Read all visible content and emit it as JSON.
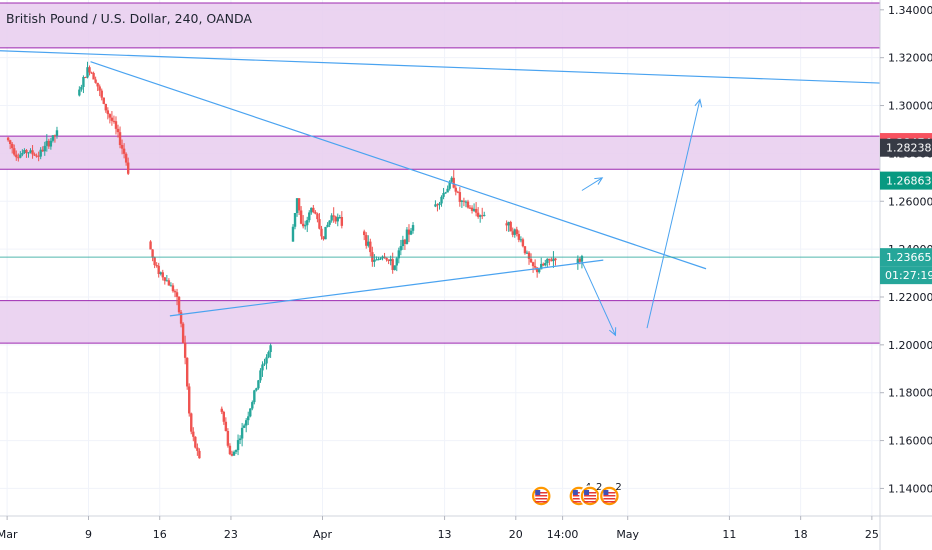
{
  "chart_data": {
    "type": "candlestick",
    "title": "British Pound / U.S. Dollar, 240, OANDA",
    "x_ticks": [
      {
        "label": "Mar",
        "day": 1
      },
      {
        "label": "9",
        "day": 9
      },
      {
        "label": "16",
        "day": 16
      },
      {
        "label": "23",
        "day": 23
      },
      {
        "label": "Apr",
        "day": 32
      },
      {
        "label": "13",
        "day": 44
      },
      {
        "label": "20",
        "day": 51
      },
      {
        "label": "14:00",
        "day": 55.6
      },
      {
        "label": "May",
        "day": 62
      },
      {
        "label": "11",
        "day": 72
      },
      {
        "label": "18",
        "day": 79
      },
      {
        "label": "25",
        "day": 86
      }
    ],
    "x_range_days": [
      0.3,
      86.8
    ],
    "y_ticks": [
      "1.14000",
      "1.16000",
      "1.18000",
      "1.20000",
      "1.22000",
      "1.24000",
      "1.26000",
      "1.28000",
      "1.30000",
      "1.32000",
      "1.34000"
    ],
    "ylim": [
      1.12848,
      1.3441
    ],
    "price_path": [
      [
        0.3,
        1.29
      ],
      [
        1.0,
        1.286
      ],
      [
        2.0,
        1.279
      ],
      [
        3.0,
        1.281
      ],
      [
        4.0,
        1.279
      ],
      [
        5.0,
        1.284
      ],
      [
        6.0,
        1.289
      ],
      [
        7.0,
        1.297
      ],
      [
        8.0,
        1.305
      ],
      [
        9.0,
        1.316
      ],
      [
        9.7,
        1.311
      ],
      [
        10.5,
        1.3
      ],
      [
        11.5,
        1.292
      ],
      [
        12.5,
        1.28
      ],
      [
        13.5,
        1.262
      ],
      [
        14.5,
        1.25
      ],
      [
        15.5,
        1.233
      ],
      [
        16.5,
        1.228
      ],
      [
        17.5,
        1.222
      ],
      [
        18.0,
        1.212
      ],
      [
        18.5,
        1.194
      ],
      [
        19.0,
        1.165
      ],
      [
        20.0,
        1.15
      ],
      [
        21.0,
        1.158
      ],
      [
        22.0,
        1.175
      ],
      [
        23.0,
        1.152
      ],
      [
        24.0,
        1.163
      ],
      [
        25.0,
        1.175
      ],
      [
        26.0,
        1.19
      ],
      [
        27.0,
        1.2
      ],
      [
        28.0,
        1.215
      ],
      [
        28.8,
        1.24
      ],
      [
        29.5,
        1.262
      ],
      [
        30.0,
        1.247
      ],
      [
        31.0,
        1.258
      ],
      [
        32.0,
        1.245
      ],
      [
        33.0,
        1.255
      ],
      [
        34.0,
        1.25
      ],
      [
        35.0,
        1.242
      ],
      [
        36.0,
        1.248
      ],
      [
        37.0,
        1.234
      ],
      [
        38.0,
        1.238
      ],
      [
        39.0,
        1.232
      ],
      [
        40.0,
        1.244
      ],
      [
        41.0,
        1.25
      ],
      [
        42.0,
        1.256
      ],
      [
        43.0,
        1.258
      ],
      [
        44.0,
        1.264
      ],
      [
        44.8,
        1.269
      ],
      [
        45.5,
        1.26
      ],
      [
        46.5,
        1.257
      ],
      [
        47.5,
        1.254
      ],
      [
        48.5,
        1.257
      ],
      [
        49.5,
        1.252
      ],
      [
        50.5,
        1.249
      ],
      [
        51.5,
        1.244
      ],
      [
        52.5,
        1.233
      ],
      [
        53.0,
        1.231
      ],
      [
        54.0,
        1.234
      ],
      [
        55.0,
        1.237
      ],
      [
        56.0,
        1.236
      ],
      [
        57.0,
        1.234
      ],
      [
        57.5,
        1.2366
      ]
    ],
    "zones": [
      {
        "from": 1.3241,
        "to": 1.34285,
        "color": "#e7cdee"
      },
      {
        "from": 1.2734,
        "to": 1.2872,
        "color": "#e7cdee"
      },
      {
        "from": 1.2007,
        "to": 1.2185,
        "color": "#e7cdee"
      }
    ],
    "trend_lines": [
      {
        "from": [
          0.3,
          1.3229
        ],
        "to": [
          86.8,
          1.3094
        ]
      },
      {
        "from": [
          9.2,
          1.3183
        ],
        "to": [
          69.7,
          1.2318
        ]
      },
      {
        "from": [
          17.0,
          1.2121
        ],
        "to": [
          59.6,
          1.2354
        ]
      }
    ],
    "arrows": [
      {
        "path": [
          [
            57.5,
            1.2645
          ],
          [
            59.5,
            1.2698
          ]
        ]
      },
      {
        "path": [
          [
            57.5,
            1.2348
          ],
          [
            60.8,
            1.204
          ]
        ]
      },
      {
        "path": [
          [
            63.9,
            1.207
          ],
          [
            69.1,
            1.3025
          ]
        ]
      }
    ],
    "price_labels": [
      {
        "text": "1.28474",
        "value": 1.28474,
        "color": "#f7525f"
      },
      {
        "text": "1.28238",
        "value": 1.28238,
        "color": "#363a45"
      },
      {
        "text": "1.26863",
        "value": 1.26863,
        "color": "#089981"
      },
      {
        "text": "1.23665",
        "value": 1.23665,
        "color": "#26a69a"
      }
    ],
    "countdown": "01:27:19",
    "event_markers": [
      {
        "day": 53.5,
        "kind": "flag",
        "label": ""
      },
      {
        "day": 57.2,
        "kind": "flag",
        "label": "4"
      },
      {
        "day": 58.3,
        "kind": "flag",
        "label": "2"
      },
      {
        "day": 60.2,
        "kind": "flag",
        "label": "2"
      }
    ],
    "colors": {
      "up": "#26a69a",
      "down": "#ef5350",
      "trend": "#4aa3f0",
      "zone_border": "#9c27b0",
      "current_line": "#26a69a"
    }
  }
}
